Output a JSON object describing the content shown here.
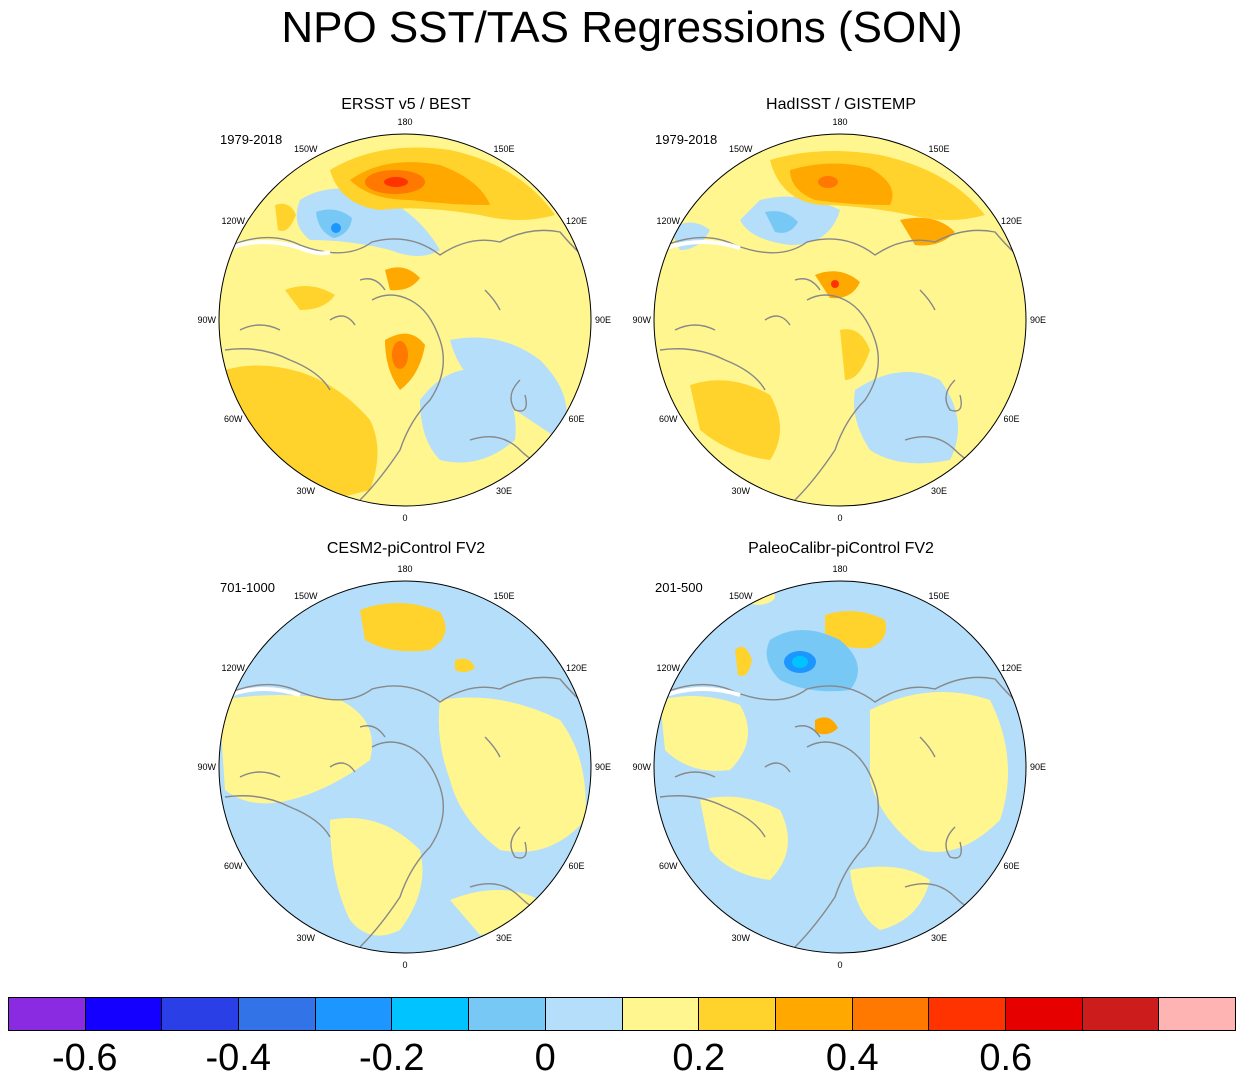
{
  "title": "NPO SST/TAS Regressions (SON)",
  "lon_labels": [
    "180",
    "150E",
    "120E",
    "90E",
    "60E",
    "30E",
    "0",
    "30W",
    "60W",
    "90W",
    "120W",
    "150W"
  ],
  "panels": [
    {
      "title": "ERSST v5 / BEST",
      "period": "1979-2018"
    },
    {
      "title": "HadISST / GISTEMP",
      "period": "1979-2018"
    },
    {
      "title": "CESM2-piControl FV2",
      "period": "701-1000"
    },
    {
      "title": "PaleoCalibr-piControl FV2",
      "period": "201-500"
    }
  ],
  "colorbar": {
    "colors": [
      "#8a2be2",
      "#1400ff",
      "#2a3fe6",
      "#3373e8",
      "#1e96ff",
      "#00c3ff",
      "#78c8f5",
      "#b4defa",
      "#fff68f",
      "#ffd32b",
      "#ffa800",
      "#ff7800",
      "#ff3300",
      "#e60000",
      "#cc1c1c",
      "#ffb4b4"
    ],
    "tick_labels": [
      "-0.6",
      "-0.4",
      "-0.2",
      "0",
      "0.2",
      "0.4",
      "0.6"
    ]
  },
  "colors": {
    "neutral_pos": "#fff68f",
    "neutral_neg": "#b4defa",
    "land_outline": "#888888"
  }
}
